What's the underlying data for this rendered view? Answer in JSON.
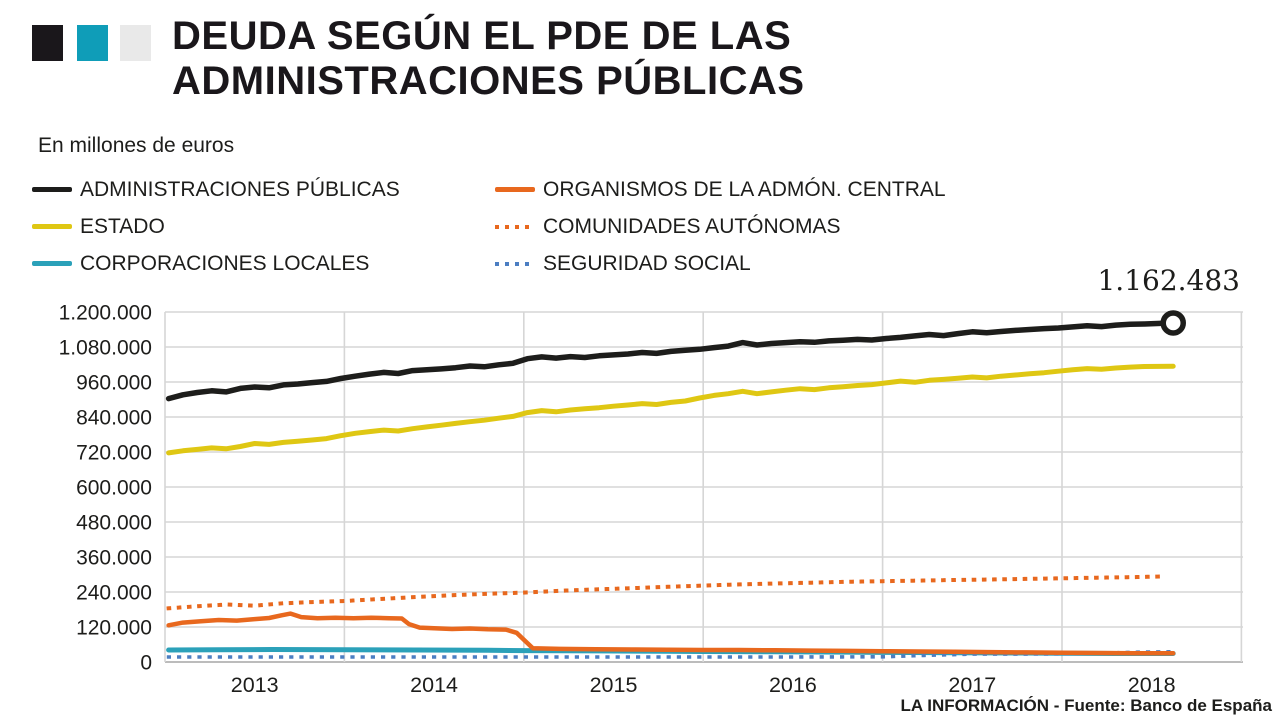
{
  "header": {
    "logo_squares": [
      "#1a171b",
      "#0f9db8",
      "#e9e9e9"
    ],
    "title_line1": "DEUDA SEGÚN EL PDE DE LAS",
    "title_line2": "ADMINISTRACIONES PÚBLICAS",
    "subtitle": "En millones de euros"
  },
  "legend": {
    "items": [
      {
        "label": "ADMINISTRACIONES PÚBLICAS",
        "color": "#1d1d1b",
        "style": "solid"
      },
      {
        "label": "ESTADO",
        "color": "#dfc713",
        "style": "solid"
      },
      {
        "label": "CORPORACIONES LOCALES",
        "color": "#2ba1b9",
        "style": "solid"
      },
      {
        "label": "ORGANISMOS DE LA ADMÓN. CENTRAL",
        "color": "#e8681e",
        "style": "solid"
      },
      {
        "label": "COMUNIDADES AUTÓNOMAS",
        "color": "#e8681e",
        "style": "dotted"
      },
      {
        "label": "SEGURIDAD SOCIAL",
        "color": "#4c7ec2",
        "style": "dotted"
      }
    ]
  },
  "chart_data": {
    "type": "line",
    "title": "DEUDA SEGÚN EL PDE DE LAS ADMINISTRACIONES PÚBLICAS",
    "units": "millones de euros",
    "grid": true,
    "legend_position": "top",
    "ylim": [
      0,
      1200000
    ],
    "x_range": [
      2013,
      2019
    ],
    "y_ticks": [
      {
        "value": 1200000,
        "label": "1.200.000"
      },
      {
        "value": 1080000,
        "label": "1.080.000"
      },
      {
        "value": 960000,
        "label": "960.000"
      },
      {
        "value": 840000,
        "label": "840.000"
      },
      {
        "value": 720000,
        "label": "720.000"
      },
      {
        "value": 600000,
        "label": "600.000"
      },
      {
        "value": 480000,
        "label": "480.000"
      },
      {
        "value": 360000,
        "label": "360.000"
      },
      {
        "value": 240000,
        "label": "240.000"
      },
      {
        "value": 120000,
        "label": "120.000"
      },
      {
        "value": 0,
        "label": "0"
      }
    ],
    "x_ticks": [
      {
        "year": 2013,
        "label": "2013"
      },
      {
        "year": 2014,
        "label": "2014"
      },
      {
        "year": 2015,
        "label": "2015"
      },
      {
        "year": 2016,
        "label": "2016"
      },
      {
        "year": 2017,
        "label": "2017"
      },
      {
        "year": 2018,
        "label": "2018"
      }
    ],
    "annotation": {
      "label": "1.162.483",
      "value": 1162483,
      "series": "ADMINISTRACIONES PÚBLICAS"
    },
    "series": [
      {
        "name": "COMUNIDADES AUTÓNOMAS",
        "id": "comunidades-autonomas",
        "color": "#e8681e",
        "style": "dotted",
        "width": 4,
        "points": [
          [
            2013.02,
            184000
          ],
          [
            2013.2,
            192000
          ],
          [
            2013.35,
            197000
          ],
          [
            2013.5,
            193000
          ],
          [
            2013.65,
            201000
          ],
          [
            2013.8,
            205000
          ],
          [
            2014.0,
            209000
          ],
          [
            2014.2,
            216000
          ],
          [
            2014.4,
            223000
          ],
          [
            2014.6,
            229000
          ],
          [
            2014.8,
            234000
          ],
          [
            2015.0,
            238000
          ],
          [
            2015.2,
            244000
          ],
          [
            2015.4,
            249000
          ],
          [
            2015.6,
            253000
          ],
          [
            2015.8,
            258000
          ],
          [
            2016.0,
            262000
          ],
          [
            2016.2,
            266000
          ],
          [
            2016.4,
            269000
          ],
          [
            2016.6,
            272000
          ],
          [
            2016.8,
            275000
          ],
          [
            2017.0,
            277000
          ],
          [
            2017.2,
            279000
          ],
          [
            2017.4,
            281000
          ],
          [
            2017.6,
            283000
          ],
          [
            2017.8,
            285000
          ],
          [
            2018.0,
            287000
          ],
          [
            2018.2,
            289000
          ],
          [
            2018.4,
            291000
          ],
          [
            2018.55,
            293000
          ]
        ]
      },
      {
        "name": "CORPORACIONES LOCALES",
        "id": "corporaciones-locales",
        "color": "#2ba1b9",
        "style": "solid",
        "width": 5,
        "points": [
          [
            2013.02,
            41000
          ],
          [
            2013.3,
            42000
          ],
          [
            2013.6,
            43000
          ],
          [
            2014.0,
            42000
          ],
          [
            2014.4,
            41000
          ],
          [
            2014.8,
            40000
          ],
          [
            2015.0,
            39000
          ],
          [
            2015.4,
            38000
          ],
          [
            2015.8,
            37000
          ],
          [
            2016.0,
            36000
          ],
          [
            2016.4,
            35000
          ],
          [
            2016.8,
            34000
          ],
          [
            2017.0,
            33000
          ],
          [
            2017.4,
            32000
          ],
          [
            2017.8,
            31000
          ],
          [
            2018.0,
            30000
          ],
          [
            2018.3,
            29000
          ],
          [
            2018.62,
            29000
          ]
        ]
      },
      {
        "name": "SEGURIDAD SOCIAL",
        "id": "seguridad-social",
        "color": "#4c7ec2",
        "style": "dotted",
        "width": 3.6,
        "points": [
          [
            2013.02,
            17000
          ],
          [
            2013.5,
            17000
          ],
          [
            2014.0,
            17000
          ],
          [
            2014.5,
            17000
          ],
          [
            2015.0,
            17000
          ],
          [
            2015.5,
            17000
          ],
          [
            2016.0,
            17000
          ],
          [
            2016.5,
            17000
          ],
          [
            2017.0,
            18000
          ],
          [
            2017.25,
            23000
          ],
          [
            2017.5,
            27000
          ],
          [
            2017.75,
            27000
          ],
          [
            2018.0,
            28000
          ],
          [
            2018.25,
            31000
          ],
          [
            2018.45,
            34000
          ],
          [
            2018.62,
            35000
          ]
        ]
      },
      {
        "name": "ORGANISMOS DE LA ADMÓN. CENTRAL",
        "id": "organismos-admon-central",
        "color": "#e8681e",
        "style": "solid",
        "width": 4.5,
        "points": [
          [
            2013.02,
            126000
          ],
          [
            2013.1,
            135000
          ],
          [
            2013.2,
            140000
          ],
          [
            2013.3,
            144000
          ],
          [
            2013.4,
            142000
          ],
          [
            2013.5,
            147000
          ],
          [
            2013.58,
            151000
          ],
          [
            2013.65,
            160000
          ],
          [
            2013.7,
            166000
          ],
          [
            2013.76,
            154000
          ],
          [
            2013.85,
            150000
          ],
          [
            2013.95,
            152000
          ],
          [
            2014.05,
            150000
          ],
          [
            2014.15,
            152000
          ],
          [
            2014.25,
            150000
          ],
          [
            2014.32,
            149000
          ],
          [
            2014.36,
            130000
          ],
          [
            2014.42,
            118000
          ],
          [
            2014.5,
            116000
          ],
          [
            2014.6,
            113000
          ],
          [
            2014.7,
            115000
          ],
          [
            2014.8,
            112000
          ],
          [
            2014.9,
            111000
          ],
          [
            2014.96,
            100000
          ],
          [
            2015.05,
            47000
          ],
          [
            2015.2,
            45000
          ],
          [
            2015.4,
            44000
          ],
          [
            2015.6,
            43000
          ],
          [
            2015.8,
            42000
          ],
          [
            2016.0,
            41000
          ],
          [
            2016.2,
            41000
          ],
          [
            2016.4,
            40000
          ],
          [
            2016.6,
            39000
          ],
          [
            2016.8,
            38000
          ],
          [
            2017.0,
            37000
          ],
          [
            2017.2,
            36000
          ],
          [
            2017.4,
            35000
          ],
          [
            2017.6,
            34000
          ],
          [
            2017.8,
            33000
          ],
          [
            2018.0,
            32000
          ],
          [
            2018.2,
            31000
          ],
          [
            2018.4,
            30000
          ],
          [
            2018.62,
            30000
          ]
        ]
      },
      {
        "name": "ESTADO",
        "id": "estado",
        "color": "#dfc713",
        "style": "solid",
        "width": 5,
        "x_start": 2013.02,
        "x_step": 0.08,
        "end_point": [
          2018.62,
          1014000
        ],
        "values": [
          717000,
          724000,
          729000,
          734000,
          731000,
          739000,
          749000,
          746000,
          753000,
          757000,
          761000,
          766000,
          776000,
          784000,
          790000,
          795000,
          792000,
          800000,
          806000,
          812000,
          818000,
          824000,
          829000,
          836000,
          842000,
          855000,
          862000,
          858000,
          864000,
          868000,
          872000,
          877000,
          881000,
          886000,
          883000,
          890000,
          895000,
          905000,
          914000,
          920000,
          928000,
          920000,
          926000,
          932000,
          937000,
          934000,
          940000,
          944000,
          948000,
          951000,
          957000,
          963000,
          959000,
          966000,
          969000,
          973000,
          977000,
          974000,
          980000,
          984000,
          988000,
          992000,
          997000,
          1002000,
          1006000,
          1004000,
          1008000,
          1011000,
          1013000
        ]
      },
      {
        "name": "ADMINISTRACIONES PÚBLICAS",
        "id": "administraciones-publicas",
        "color": "#1d1d1b",
        "style": "solid",
        "width": 5.5,
        "end_marker": true,
        "x_start": 2013.02,
        "x_step": 0.08,
        "end_point": [
          2018.62,
          1162483
        ],
        "values": [
          903000,
          916000,
          924000,
          930000,
          926000,
          938000,
          943000,
          940000,
          950000,
          953000,
          958000,
          962000,
          972000,
          980000,
          987000,
          993000,
          989000,
          999000,
          1002000,
          1005000,
          1009000,
          1015000,
          1012000,
          1019000,
          1024000,
          1040000,
          1046000,
          1042000,
          1047000,
          1044000,
          1050000,
          1053000,
          1056000,
          1061000,
          1058000,
          1065000,
          1069000,
          1072000,
          1078000,
          1083000,
          1095000,
          1087000,
          1092000,
          1095000,
          1098000,
          1096000,
          1101000,
          1103000,
          1106000,
          1104000,
          1109000,
          1113000,
          1118000,
          1123000,
          1119000,
          1126000,
          1132000,
          1129000,
          1133000,
          1137000,
          1140000,
          1143000,
          1145000,
          1149000,
          1153000,
          1150000,
          1155000,
          1158000,
          1159000
        ]
      }
    ],
    "colors": {
      "grid": "#d6d6d6",
      "baseline": "#bcbcbc",
      "text": "#1d1d1b"
    }
  },
  "footer": {
    "text": "LA INFORMACIÓN - Fuente: Banco de España"
  }
}
